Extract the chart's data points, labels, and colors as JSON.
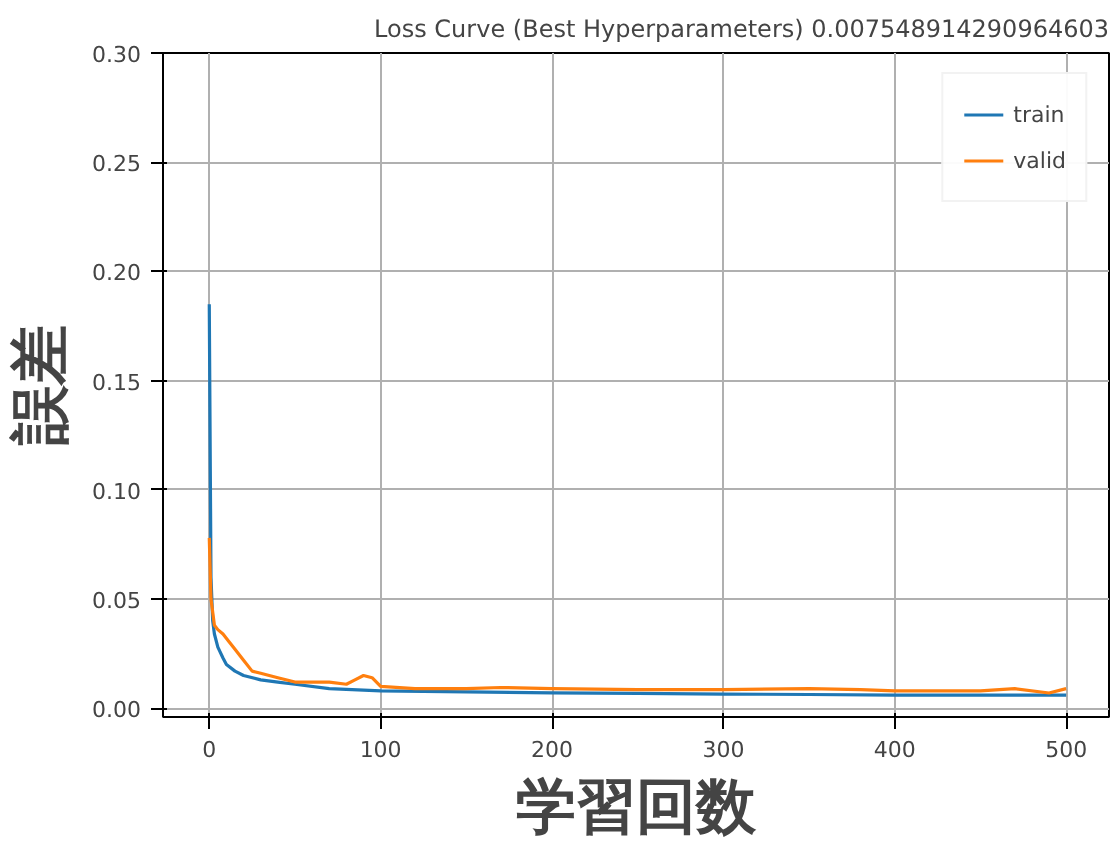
{
  "chart_data": {
    "type": "line",
    "title": "Loss Curve (Best Hyperparameters) 0.007548914290964603",
    "xlabel": "学習回数",
    "ylabel": "誤差",
    "xlim": [
      -27,
      525
    ],
    "ylim": [
      -0.004,
      0.3
    ],
    "xticks": [
      0,
      100,
      200,
      300,
      400,
      500
    ],
    "yticks": [
      {
        "value": 0,
        "label": "0.00"
      },
      {
        "value": 0.05,
        "label": "0.05"
      },
      {
        "value": 0.1,
        "label": "0.10"
      },
      {
        "value": 0.15,
        "label": "0.15"
      },
      {
        "value": 0.2,
        "label": "0.20"
      },
      {
        "value": 0.25,
        "label": "0.25"
      },
      {
        "value": 0.3,
        "label": "0.30"
      }
    ],
    "grid": true,
    "legend": "top right",
    "line_style": "solid",
    "series": [
      {
        "name": "train",
        "color": "#1f77b4",
        "x": [
          0,
          1,
          2,
          3,
          5,
          8,
          10,
          15,
          20,
          30,
          40,
          50,
          70,
          100,
          150,
          200,
          250,
          300,
          350,
          400,
          450,
          500
        ],
        "values": [
          0.185,
          0.06,
          0.04,
          0.034,
          0.028,
          0.023,
          0.02,
          0.017,
          0.015,
          0.013,
          0.012,
          0.011,
          0.009,
          0.008,
          0.0075,
          0.007,
          0.0068,
          0.0065,
          0.0063,
          0.006,
          0.006,
          0.006
        ]
      },
      {
        "name": "valid",
        "color": "#ff7f0e",
        "x": [
          0,
          1,
          3,
          5,
          8,
          12,
          15,
          20,
          25,
          30,
          35,
          40,
          50,
          60,
          70,
          80,
          85,
          90,
          95,
          100,
          120,
          150,
          170,
          200,
          250,
          300,
          350,
          380,
          400,
          450,
          470,
          490,
          500
        ],
        "values": [
          0.078,
          0.05,
          0.038,
          0.036,
          0.034,
          0.03,
          0.027,
          0.022,
          0.017,
          0.016,
          0.015,
          0.014,
          0.012,
          0.012,
          0.012,
          0.011,
          0.013,
          0.015,
          0.014,
          0.01,
          0.009,
          0.009,
          0.0095,
          0.009,
          0.0085,
          0.0085,
          0.009,
          0.0085,
          0.008,
          0.008,
          0.009,
          0.007,
          0.009
        ]
      }
    ]
  }
}
